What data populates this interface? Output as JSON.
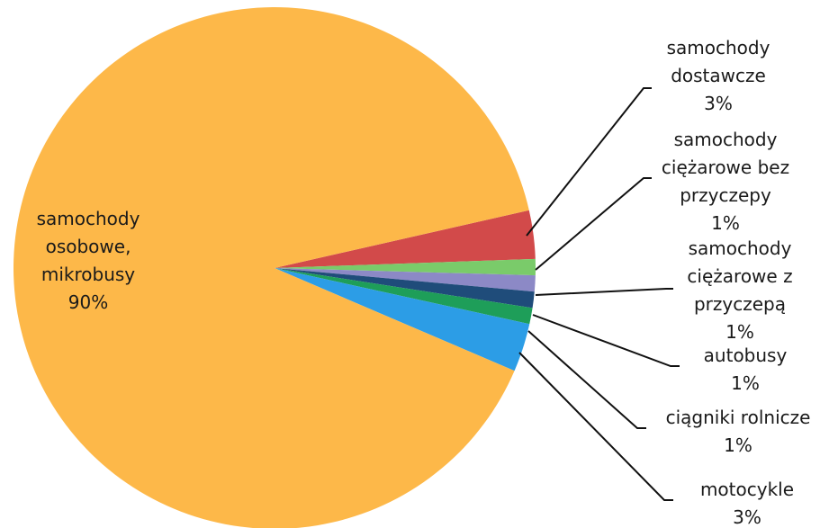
{
  "chart_data": {
    "type": "pie",
    "title": "",
    "categories": [
      "samochody osobowe, mikrobusy",
      "samochody dostawcze",
      "samochody ciężarowe bez przyczepy",
      "samochody ciężarowe z przyczepą",
      "autobusy",
      "ciągniki rolnicze",
      "motocykle"
    ],
    "values": [
      90,
      3,
      1,
      1,
      1,
      1,
      3
    ],
    "value_labels": [
      "90%",
      "3%",
      "1%",
      "1%",
      "1%",
      "1%",
      "3%"
    ],
    "label_lines": [
      [
        "samochody",
        "osobowe,",
        "mikrobusy"
      ],
      [
        "samochody",
        "dostawcze"
      ],
      [
        "samochody",
        "ciężarowe bez",
        "przyczepy"
      ],
      [
        "samochody",
        "ciężarowe z",
        "przyczepą"
      ],
      [
        "autobusy"
      ],
      [
        "ciągniki rolnicze"
      ],
      [
        "motocykle"
      ]
    ],
    "colors": [
      "#FDB849",
      "#D24A4A",
      "#7ACB6A",
      "#8C89C6",
      "#1F4C7A",
      "#1E9E59",
      "#2C9DE6"
    ],
    "legend": "none"
  }
}
